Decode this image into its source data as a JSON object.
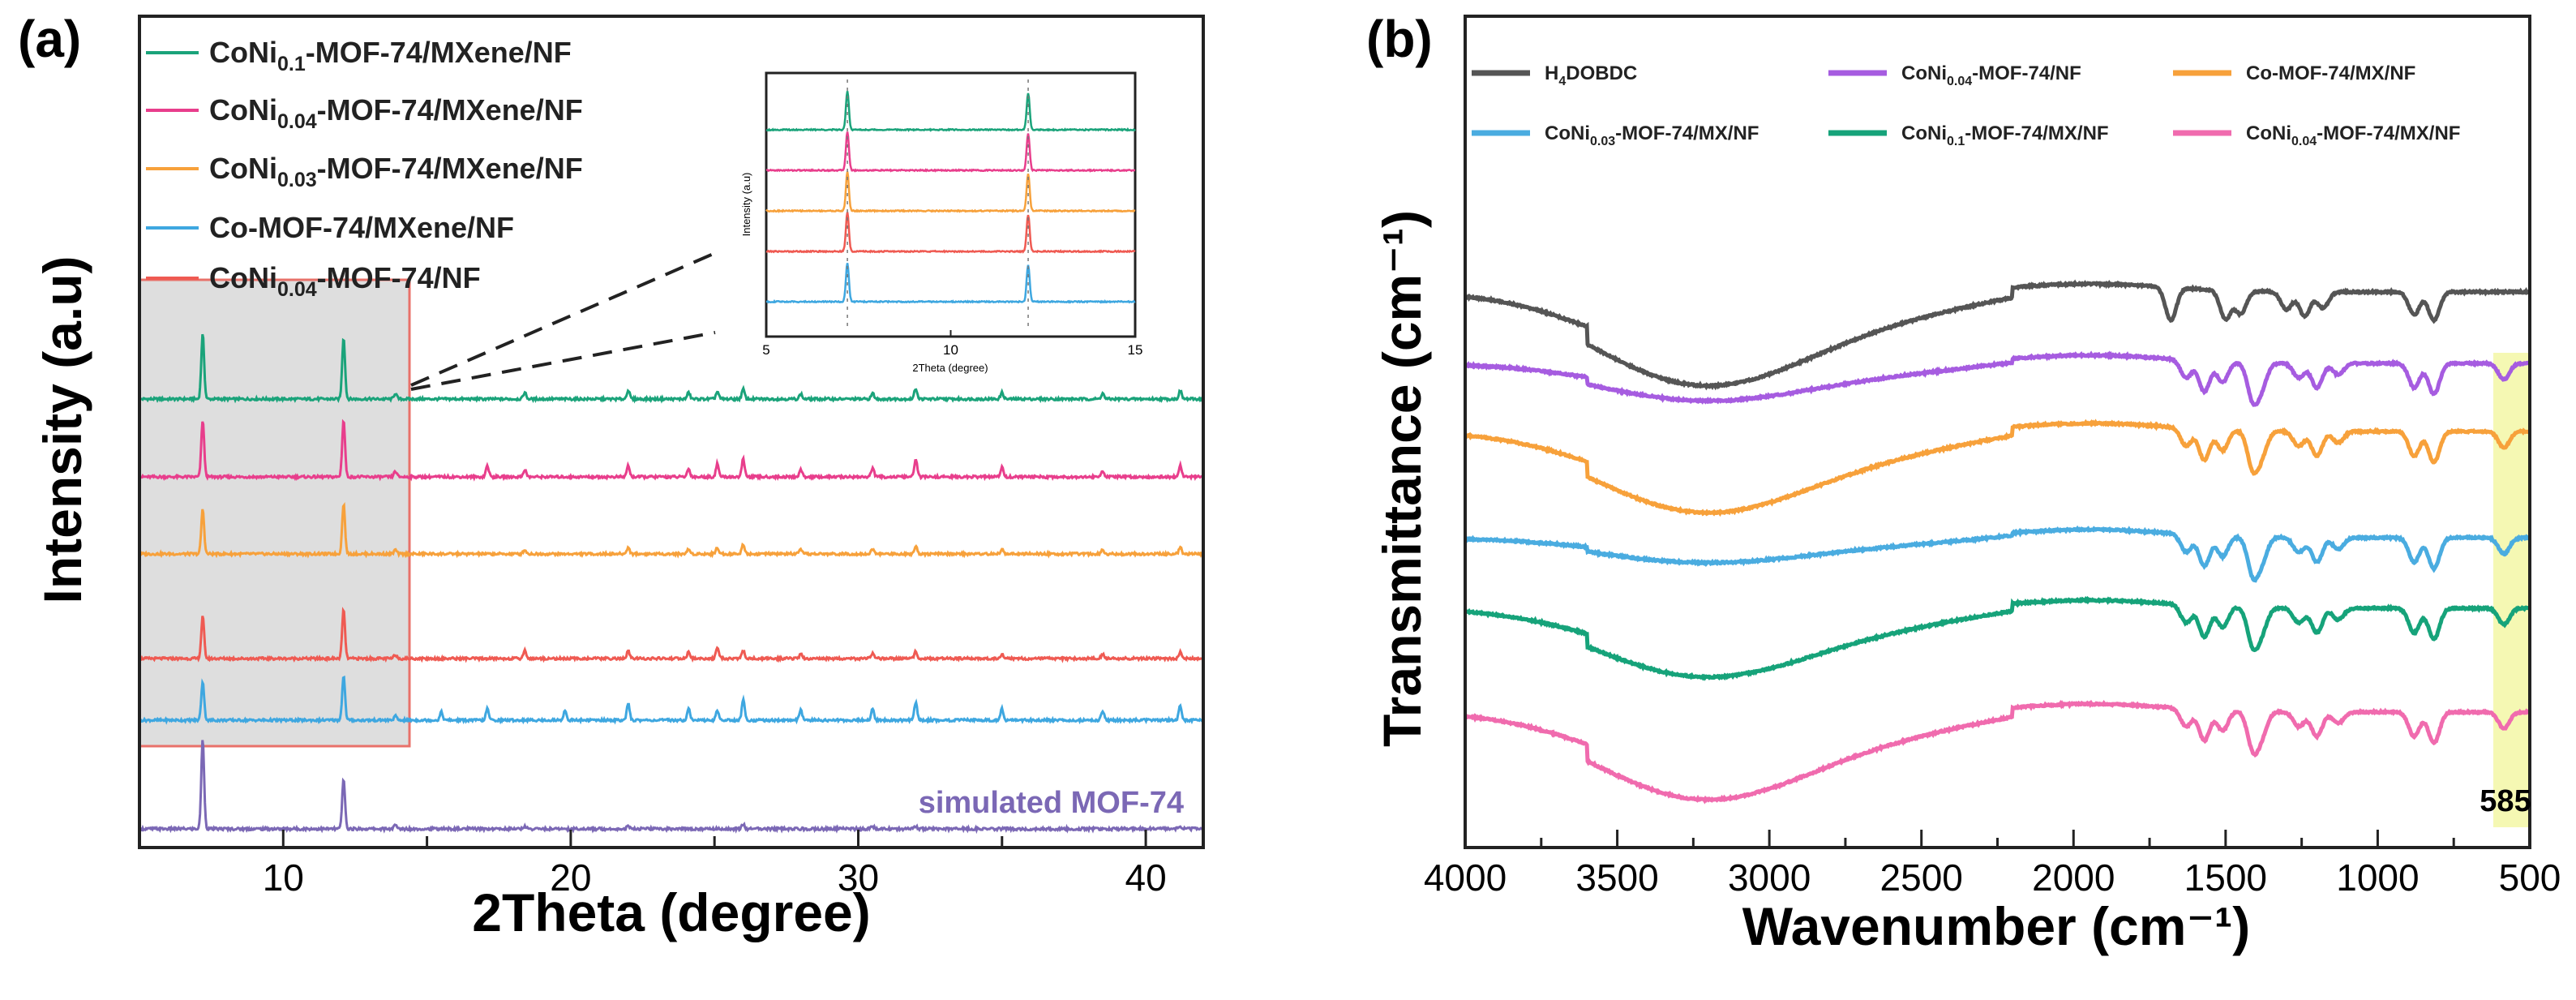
{
  "panel_a_label": "(a)",
  "panel_b_label": "(b)",
  "chart_data": [
    {
      "type": "line",
      "panel": "(a)",
      "title": "",
      "xlabel": "2Theta (degree)",
      "ylabel": "Intensity (a.u)",
      "xlim": [
        5,
        42
      ],
      "xticks": [
        10,
        20,
        30,
        40
      ],
      "series": [
        {
          "name": "CoNi0.1-MOF-74/MXene/NF",
          "legend_main": "CoNi",
          "legend_sub": "0.1",
          "legend_rest": "-MOF-74/MXene/NF",
          "color": "#1aa37a",
          "offset": 5,
          "peaks": [
            [
              7.2,
              80
            ],
            [
              12.1,
              76
            ],
            [
              13.9,
              7
            ],
            [
              18.4,
              8
            ],
            [
              22.0,
              11
            ],
            [
              24.1,
              8
            ],
            [
              25.1,
              9
            ],
            [
              26.0,
              12
            ],
            [
              28.0,
              6
            ],
            [
              30.5,
              7
            ],
            [
              32.0,
              13
            ],
            [
              35.0,
              8
            ],
            [
              38.5,
              7
            ],
            [
              41.2,
              10
            ]
          ]
        },
        {
          "name": "CoNi0.04-MOF-74/MXene/NF",
          "legend_main": "CoNi",
          "legend_sub": "0.04",
          "legend_rest": "-MOF-74/MXene/NF",
          "color": "#e83e8c",
          "offset": 4,
          "peaks": [
            [
              7.2,
              70
            ],
            [
              12.1,
              70
            ],
            [
              13.9,
              7
            ],
            [
              17.1,
              14
            ],
            [
              18.4,
              9
            ],
            [
              22.0,
              14
            ],
            [
              24.1,
              10
            ],
            [
              25.1,
              16
            ],
            [
              26.0,
              22
            ],
            [
              28.0,
              9
            ],
            [
              30.5,
              11
            ],
            [
              32.0,
              22
            ],
            [
              35.0,
              12
            ],
            [
              38.5,
              8
            ],
            [
              41.2,
              14
            ]
          ]
        },
        {
          "name": "CoNi0.03-MOF-74/MXene/NF",
          "legend_main": "CoNi",
          "legend_sub": "0.03",
          "legend_rest": "-MOF-74/MXene/NF",
          "color": "#f7a13b",
          "offset": 3,
          "peaks": [
            [
              7.2,
              55
            ],
            [
              12.1,
              62
            ],
            [
              13.9,
              5
            ],
            [
              18.4,
              5
            ],
            [
              22.0,
              8
            ],
            [
              24.1,
              6
            ],
            [
              25.1,
              8
            ],
            [
              26.0,
              12
            ],
            [
              28.0,
              5
            ],
            [
              30.5,
              6
            ],
            [
              32.0,
              10
            ],
            [
              35.0,
              6
            ],
            [
              38.5,
              5
            ],
            [
              41.2,
              8
            ]
          ]
        },
        {
          "name": "Co-MOF-74/MXene/NF",
          "legend_main": "Co-MOF-74/MXene/NF",
          "legend_sub": "",
          "legend_rest": "",
          "color": "#3ea7e0",
          "offset": 1,
          "peaks": [
            [
              7.2,
              48
            ],
            [
              12.1,
              55
            ],
            [
              13.9,
              5
            ],
            [
              15.5,
              10
            ],
            [
              17.1,
              14
            ],
            [
              19.8,
              12
            ],
            [
              22.0,
              20
            ],
            [
              24.1,
              15
            ],
            [
              25.1,
              12
            ],
            [
              26.0,
              25
            ],
            [
              28.0,
              12
            ],
            [
              30.5,
              14
            ],
            [
              32.0,
              22
            ],
            [
              35.0,
              14
            ],
            [
              38.5,
              12
            ],
            [
              41.2,
              18
            ]
          ]
        },
        {
          "name": "CoNi0.04-MOF-74/NF",
          "legend_main": "CoNi",
          "legend_sub": "0.04",
          "legend_rest": "-MOF-74/NF",
          "color": "#ef5a52",
          "offset": 2,
          "peaks": [
            [
              7.2,
              52
            ],
            [
              12.1,
              60
            ],
            [
              13.9,
              5
            ],
            [
              18.4,
              10
            ],
            [
              22.0,
              9
            ],
            [
              24.1,
              8
            ],
            [
              25.1,
              12
            ],
            [
              26.0,
              10
            ],
            [
              28.0,
              5
            ],
            [
              30.5,
              6
            ],
            [
              32.0,
              9
            ],
            [
              35.0,
              6
            ],
            [
              38.5,
              5
            ],
            [
              41.2,
              8
            ]
          ]
        },
        {
          "name": "simulated MOF-74",
          "legend_main": "simulated MOF-74",
          "color": "#7b68b5",
          "offset": 0,
          "label_in_plot": true,
          "peaks": [
            [
              7.2,
              100
            ],
            [
              12.1,
              55
            ],
            [
              13.9,
              4
            ],
            [
              18.4,
              3
            ],
            [
              22.0,
              3
            ],
            [
              26.0,
              5
            ],
            [
              30.5,
              3
            ],
            [
              32.0,
              3
            ],
            [
              41.2,
              3
            ]
          ]
        }
      ],
      "inset": {
        "xlabel": "2Theta (degree)",
        "ylabel": "Intensity (a.u)",
        "xlim": [
          5,
          15
        ],
        "xticks": [
          5,
          10,
          15
        ],
        "series_colors": [
          "#1aa37a",
          "#e83e8c",
          "#f7a13b",
          "#ef5a52",
          "#3ea7e0"
        ],
        "peaks": [
          [
            7.2,
            100
          ],
          [
            12.1,
            95
          ]
        ]
      }
    },
    {
      "type": "line",
      "panel": "(b)",
      "title": "",
      "xlabel": "Wavenumber (cm⁻¹)",
      "ylabel": "Transmittance (cm⁻¹)",
      "xlim": [
        4000,
        500
      ],
      "xticks": [
        4000,
        3500,
        3000,
        2500,
        2000,
        1500,
        1000,
        500
      ],
      "annotation": "585",
      "highlight_band": [
        620,
        500
      ],
      "series": [
        {
          "name": "H4DOBDC",
          "legend_main": "H",
          "legend_sub": "4",
          "legend_rest": "DOBDC",
          "color": "#555555",
          "offset": 5
        },
        {
          "name": "CoNi0.04-MOF-74/NF",
          "legend_main": "CoNi",
          "legend_sub": "0.04",
          "legend_rest": "-MOF-74/NF",
          "color": "#a65ce0",
          "offset": 4
        },
        {
          "name": "Co-MOF-74/MX/NF",
          "legend_main": "Co-MOF-74/MX/NF",
          "legend_sub": "",
          "legend_rest": "",
          "color": "#f7a13b",
          "offset": 3
        },
        {
          "name": "CoNi0.03-MOF-74/MX/NF",
          "legend_main": "CoNi",
          "legend_sub": "0.03",
          "legend_rest": "-MOF-74/MX/NF",
          "color": "#4aace0",
          "offset": 2
        },
        {
          "name": "CoNi0.1-MOF-74/MX/NF",
          "legend_main": "CoNi",
          "legend_sub": "0.1",
          "legend_rest": "-MOF-74/MX/NF",
          "color": "#16a37a",
          "offset": 1
        },
        {
          "name": "CoNi0.04-MOF-74/MX/NF",
          "legend_main": "CoNi",
          "legend_sub": "0.04",
          "legend_rest": "-MOF-74/MX/NF",
          "color": "#f06bae",
          "offset": 0
        }
      ]
    }
  ]
}
